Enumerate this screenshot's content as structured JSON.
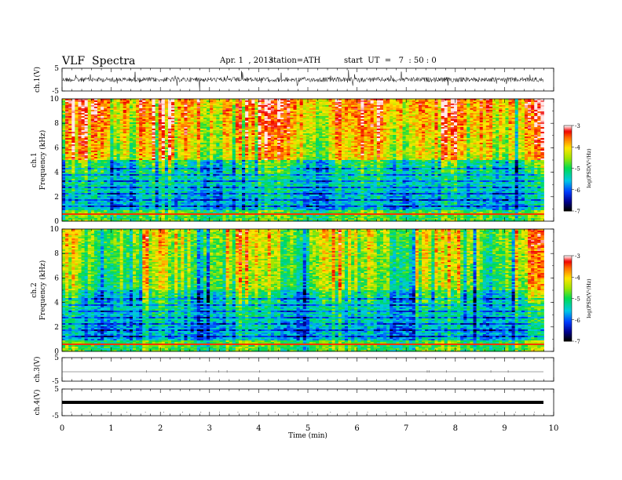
{
  "header": {
    "title": "VLF  Spectra",
    "date": "Apr. 1  , 2013",
    "station": "station=ATH",
    "start": "start  UT  =   7  : 50 : 0"
  },
  "colorbar": {
    "label": "log(PSD(V²/Hz)",
    "ticks": [
      "-3",
      "-4",
      "-5",
      "-6",
      "-7"
    ]
  },
  "chart_data": [
    {
      "type": "line",
      "name": "waveform",
      "ylabel": "ch.1(V)",
      "ylim": [
        -5,
        5
      ],
      "yticks": [
        "5",
        "-5"
      ],
      "description_level": "noisy waveform near 0 V across 0–9.8 min"
    },
    {
      "type": "heatmap",
      "name": "spectrogram-ch1",
      "ylabel": "Frequency (kHz)",
      "ylabel_channel": "ch.1",
      "ylim": [
        0,
        10
      ],
      "yticks": [
        "0",
        "2",
        "4",
        "6",
        "8",
        "10"
      ],
      "clim": [
        -7,
        -3
      ],
      "xrange_min": [
        0,
        9.8
      ]
    },
    {
      "type": "heatmap",
      "name": "spectrogram-ch2",
      "ylabel": "Frequency (kHz)",
      "ylabel_channel": "ch.2",
      "ylim": [
        0,
        10
      ],
      "yticks": [
        "0",
        "2",
        "4",
        "6",
        "8",
        "10"
      ],
      "clim": [
        -7,
        -3
      ],
      "xrange_min": [
        0,
        9.8
      ]
    },
    {
      "type": "line",
      "name": "waveform",
      "ylabel": "ch.3(V)",
      "ylim": [
        -5,
        5
      ],
      "yticks": [
        "5",
        "-5"
      ]
    },
    {
      "type": "line",
      "name": "waveform",
      "ylabel": "ch.4(V)",
      "ylim": [
        -5,
        5
      ],
      "yticks": [
        "5",
        "-5"
      ]
    }
  ],
  "xaxis": {
    "label": "Time  (min)",
    "range": [
      0,
      10
    ],
    "ticks": [
      "0",
      "1",
      "2",
      "3",
      "4",
      "5",
      "6",
      "7",
      "8",
      "9",
      "10"
    ]
  }
}
